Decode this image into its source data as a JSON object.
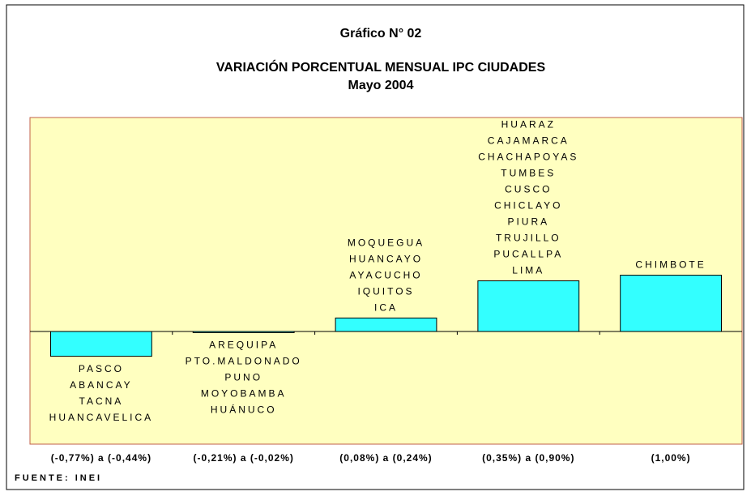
{
  "chart_data": {
    "type": "bar",
    "title": "Gráfico N° 02",
    "subtitle": [
      "VARIACIÓN PORCENTUAL MENSUAL IPC CIUDADES",
      "Mayo  2004"
    ],
    "categories": [
      "(-0,77%) a (-0,44%)",
      "(-0,21%) a (-0,02%)",
      "(0,08%) a (0,24%)",
      "(0,35%) a (0,90%)",
      "(1,00%)"
    ],
    "values": [
      -0.44,
      -0.02,
      0.24,
      0.9,
      1.0
    ],
    "cities": [
      [
        "PASCO",
        "ABANCAY",
        "TACNA",
        "HUANCAVELICA"
      ],
      [
        "AREQUIPA",
        "PTO.MALDONADO",
        "PUNO",
        "MOYOBAMBA",
        "HUÁNUCO"
      ],
      [
        "MOQUEGUA",
        "HUANCAYO",
        "AYACUCHO",
        "IQUITOS",
        "ICA"
      ],
      [
        "HUARAZ",
        "CAJAMARCA",
        "CHACHAPOYAS",
        "TUMBES",
        "CUSCO",
        "CHICLAYO",
        "PIURA",
        "TRUJILLO",
        "PUCALLPA",
        "LIMA"
      ],
      [
        "CHIMBOTE"
      ]
    ],
    "color": "#33ffff",
    "ylim": [
      -2.0,
      3.8
    ],
    "source": "FUENTE: INEI"
  }
}
